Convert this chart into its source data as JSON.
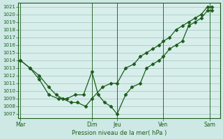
{
  "background_color": "#cde8e5",
  "plot_bg": "#d8eeeb",
  "grid_color": "#b0d0cc",
  "line_color": "#1a5c1a",
  "ylabel": "Pression niveau de la mer( hPa )",
  "ylim": [
    1006.5,
    1021.5
  ],
  "yticks": [
    1007,
    1008,
    1009,
    1010,
    1011,
    1012,
    1013,
    1014,
    1015,
    1016,
    1017,
    1018,
    1019,
    1020,
    1021
  ],
  "xtick_labels": [
    "Mar",
    "Dim",
    "Jeu",
    "Ven",
    "Sam"
  ],
  "xtick_positions": [
    0.0,
    3.4,
    4.6,
    6.8,
    9.0
  ],
  "xlim": [
    -0.1,
    9.5
  ],
  "series1_x": [
    0.0,
    0.45,
    0.9,
    1.35,
    1.7,
    2.0,
    2.4,
    2.7,
    3.1,
    3.4,
    3.9,
    4.3,
    4.6,
    5.0,
    5.4,
    5.7,
    6.0,
    6.3,
    6.6,
    6.8,
    7.1,
    7.4,
    7.7,
    8.0,
    8.3,
    8.6,
    8.9,
    9.1
  ],
  "series1_y": [
    1014.0,
    1013.0,
    1012.0,
    1010.5,
    1009.5,
    1009.0,
    1008.5,
    1008.5,
    1008.0,
    1009.0,
    1010.5,
    1011.0,
    1011.0,
    1013.0,
    1013.5,
    1014.5,
    1015.0,
    1015.5,
    1016.0,
    1016.5,
    1017.0,
    1018.0,
    1018.5,
    1019.0,
    1019.5,
    1020.0,
    1021.0,
    1021.0
  ],
  "series2_x": [
    0.0,
    0.45,
    0.9,
    1.35,
    1.8,
    2.2,
    2.6,
    3.0,
    3.4,
    3.7,
    4.0,
    4.3,
    4.6,
    5.0,
    5.3,
    5.7,
    6.0,
    6.3,
    6.6,
    6.8,
    7.1,
    7.4,
    7.7,
    8.0,
    8.3,
    8.6,
    8.9,
    9.1
  ],
  "series2_y": [
    1014.0,
    1013.0,
    1011.5,
    1009.5,
    1009.0,
    1009.0,
    1009.5,
    1009.5,
    1012.5,
    1009.5,
    1008.5,
    1008.0,
    1007.0,
    1009.5,
    1010.5,
    1011.0,
    1013.0,
    1013.5,
    1014.0,
    1014.5,
    1015.5,
    1016.0,
    1016.5,
    1018.5,
    1019.0,
    1019.5,
    1020.5,
    1020.5
  ]
}
